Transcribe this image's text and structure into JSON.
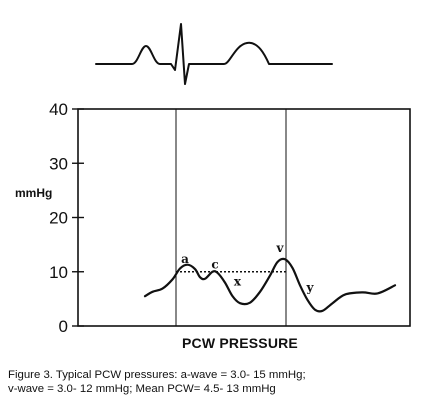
{
  "caption": {
    "line1": "Figure 3. Typical PCW pressures: a-wave = 3.0- 15 mmHg;",
    "line2": "v-wave = 3.0- 12 mmHg; Mean PCW= 4.5- 13 mmHg"
  },
  "chart_data": {
    "type": "line",
    "title": "",
    "xlabel": "PCW PRESSURE",
    "ylabel": "mmHg",
    "ylim": [
      0,
      40
    ],
    "yticks": [
      0,
      10,
      20,
      30,
      40
    ],
    "ytick_labels": [
      "0",
      "10",
      "20",
      "30",
      "40"
    ],
    "grid": true,
    "series": [
      {
        "values": [
          {
            "x": 0.0,
            "y": 5.5
          },
          {
            "x": 0.03,
            "y": 6.3
          },
          {
            "x": 0.07,
            "y": 6.9
          },
          {
            "x": 0.11,
            "y": 8.6
          },
          {
            "x": 0.14,
            "y": 10.6
          },
          {
            "x": 0.17,
            "y": 11.3
          },
          {
            "x": 0.2,
            "y": 10.5
          },
          {
            "x": 0.22,
            "y": 9.0
          },
          {
            "x": 0.24,
            "y": 8.7
          },
          {
            "x": 0.27,
            "y": 10.0
          },
          {
            "x": 0.29,
            "y": 9.8
          },
          {
            "x": 0.32,
            "y": 8.0
          },
          {
            "x": 0.35,
            "y": 5.5
          },
          {
            "x": 0.38,
            "y": 4.2
          },
          {
            "x": 0.42,
            "y": 4.3
          },
          {
            "x": 0.46,
            "y": 6.3
          },
          {
            "x": 0.5,
            "y": 9.3
          },
          {
            "x": 0.53,
            "y": 11.8
          },
          {
            "x": 0.56,
            "y": 12.3
          },
          {
            "x": 0.59,
            "y": 10.7
          },
          {
            "x": 0.62,
            "y": 7.5
          },
          {
            "x": 0.65,
            "y": 4.8
          },
          {
            "x": 0.68,
            "y": 3.0
          },
          {
            "x": 0.71,
            "y": 2.8
          },
          {
            "x": 0.75,
            "y": 4.2
          },
          {
            "x": 0.8,
            "y": 5.8
          },
          {
            "x": 0.87,
            "y": 6.2
          },
          {
            "x": 0.93,
            "y": 6.0
          },
          {
            "x": 1.0,
            "y": 7.5
          }
        ]
      }
    ],
    "reference_line": {
      "y": 10
    },
    "wave_labels": [
      {
        "text": "a",
        "x": 0.16,
        "y": 11.6
      },
      {
        "text": "c",
        "x": 0.28,
        "y": 10.6
      },
      {
        "text": "x",
        "x": 0.37,
        "y": 7.5
      },
      {
        "text": "v",
        "x": 0.54,
        "y": 13.6
      },
      {
        "text": "y",
        "x": 0.66,
        "y": 6.4
      }
    ]
  }
}
